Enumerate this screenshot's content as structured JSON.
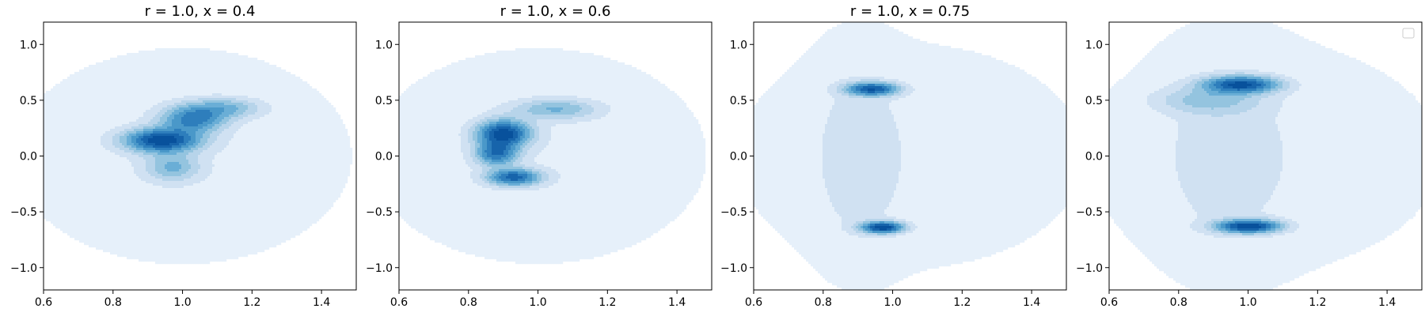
{
  "chart_data": [
    {
      "type": "contour",
      "title": "r = 1.0, x = 0.4",
      "xlim": [
        0.6,
        1.5
      ],
      "ylim": [
        -1.2,
        1.2
      ],
      "xticks": [
        0.6,
        0.8,
        1.0,
        1.2,
        1.4
      ],
      "yticks": [
        -1.0,
        -0.5,
        0.0,
        0.5,
        1.0
      ],
      "xtick_labels": [
        "0.6",
        "0.8",
        "1.0",
        "1.2",
        "1.4"
      ],
      "ytick_labels": [
        "−1.0",
        "−0.5",
        "0.0",
        "0.5",
        "1.0"
      ],
      "colormap": "Blues",
      "density_peaks": [
        {
          "x": 0.94,
          "y": 0.14,
          "sx": 0.07,
          "sy": 0.07,
          "weight": 1.0
        },
        {
          "x": 1.03,
          "y": 0.33,
          "sx": 0.06,
          "sy": 0.08,
          "weight": 0.65
        },
        {
          "x": 1.12,
          "y": 0.43,
          "sx": 0.07,
          "sy": 0.06,
          "weight": 0.35
        },
        {
          "x": 0.97,
          "y": -0.1,
          "sx": 0.05,
          "sy": 0.08,
          "weight": 0.35
        },
        {
          "x": 1.0,
          "y": 0.0,
          "sx": 0.3,
          "sy": 0.6,
          "weight": 0.08
        }
      ],
      "legend": null
    },
    {
      "type": "contour",
      "title": "r = 1.0, x = 0.6",
      "xlim": [
        0.6,
        1.5
      ],
      "ylim": [
        -1.2,
        1.2
      ],
      "xticks": [
        0.6,
        0.8,
        1.0,
        1.2,
        1.4
      ],
      "yticks": [
        -1.0,
        -0.5,
        0.0,
        0.5,
        1.0
      ],
      "xtick_labels": [
        "0.6",
        "0.8",
        "1.0",
        "1.2",
        "1.4"
      ],
      "ytick_labels": [
        "−1.0",
        "−0.5",
        "0.0",
        "0.5",
        "1.0"
      ],
      "colormap": "Blues",
      "density_peaks": [
        {
          "x": 0.9,
          "y": 0.2,
          "sx": 0.05,
          "sy": 0.08,
          "weight": 1.0
        },
        {
          "x": 0.93,
          "y": -0.19,
          "sx": 0.05,
          "sy": 0.05,
          "weight": 0.8
        },
        {
          "x": 0.88,
          "y": 0.02,
          "sx": 0.04,
          "sy": 0.07,
          "weight": 0.7
        },
        {
          "x": 1.05,
          "y": 0.42,
          "sx": 0.08,
          "sy": 0.06,
          "weight": 0.35
        },
        {
          "x": 1.0,
          "y": 0.0,
          "sx": 0.3,
          "sy": 0.6,
          "weight": 0.08
        }
      ],
      "legend": null
    },
    {
      "type": "contour",
      "title": "r = 1.0, x = 0.75",
      "xlim": [
        0.6,
        1.5
      ],
      "ylim": [
        -1.2,
        1.2
      ],
      "xticks": [
        0.6,
        0.8,
        1.0,
        1.2,
        1.4
      ],
      "yticks": [
        -1.0,
        -0.5,
        0.0,
        0.5,
        1.0
      ],
      "xtick_labels": [
        "0.6",
        "0.8",
        "1.0",
        "1.2",
        "1.4"
      ],
      "ytick_labels": [
        "−1.0",
        "−0.5",
        "0.0",
        "0.5",
        "1.0"
      ],
      "colormap": "Blues",
      "density_peaks": [
        {
          "x": 0.94,
          "y": 0.6,
          "sx": 0.05,
          "sy": 0.04,
          "weight": 0.85
        },
        {
          "x": 0.97,
          "y": -0.64,
          "sx": 0.04,
          "sy": 0.035,
          "weight": 1.0
        },
        {
          "x": 0.9,
          "y": 0.0,
          "sx": 0.08,
          "sy": 0.55,
          "weight": 0.12
        },
        {
          "x": 1.05,
          "y": 0.0,
          "sx": 0.35,
          "sy": 0.7,
          "weight": 0.06
        }
      ],
      "legend": null
    },
    {
      "type": "contour",
      "title": "",
      "xlim": [
        0.6,
        1.5
      ],
      "ylim": [
        -1.2,
        1.2
      ],
      "xticks": [
        0.6,
        0.8,
        1.0,
        1.2,
        1.4
      ],
      "yticks": [
        -1.0,
        -0.5,
        0.0,
        0.5,
        1.0
      ],
      "xtick_labels": [
        "0.6",
        "0.8",
        "1.0",
        "1.2",
        "1.4"
      ],
      "ytick_labels": [
        "−1.0",
        "−0.5",
        "0.0",
        "0.5",
        "1.0"
      ],
      "colormap": "Blues",
      "density_peaks": [
        {
          "x": 0.98,
          "y": 0.64,
          "sx": 0.07,
          "sy": 0.05,
          "weight": 0.9
        },
        {
          "x": 1.0,
          "y": -0.63,
          "sx": 0.06,
          "sy": 0.04,
          "weight": 1.0
        },
        {
          "x": 0.88,
          "y": 0.5,
          "sx": 0.1,
          "sy": 0.08,
          "weight": 0.25
        },
        {
          "x": 0.93,
          "y": 0.0,
          "sx": 0.12,
          "sy": 0.6,
          "weight": 0.1
        },
        {
          "x": 1.05,
          "y": 0.0,
          "sx": 0.35,
          "sy": 0.7,
          "weight": 0.06
        }
      ],
      "legend": {
        "placement": "top-right",
        "entries": []
      }
    }
  ],
  "colors": {
    "levels": [
      "#f7fbff",
      "#e6f0fa",
      "#d0e1f2",
      "#b7d4ea",
      "#94c4df",
      "#6aaed6",
      "#4a98c9",
      "#2e7ebc",
      "#1764ab",
      "#08519c"
    ]
  }
}
